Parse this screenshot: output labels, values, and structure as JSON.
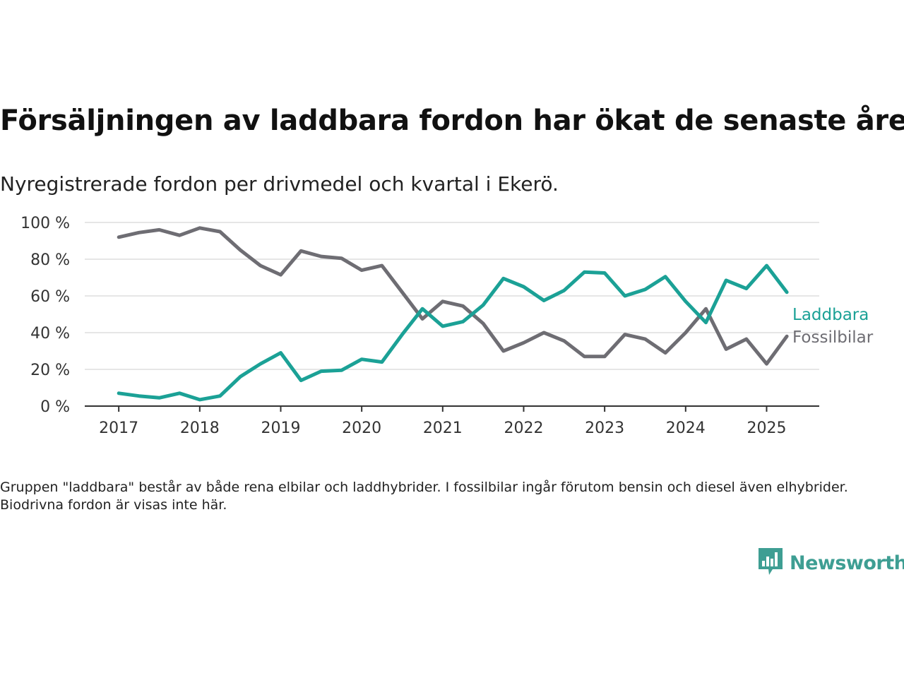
{
  "title": "Försäljningen av laddbara fordon har ökat de senaste åren",
  "subtitle": "Nyregistrerade fordon per drivmedel och kvartal i Ekerö.",
  "footnote": "Gruppen \"laddbara\" består av både rena elbilar och laddhybrider. I fossilbilar ingår förutom bensin och diesel även elhybrider. Biodrivna fordon är visas inte här.",
  "logo": {
    "text": "Newsworthy",
    "icon": "bar-chart-speech-bubble-icon",
    "color": "#3e9e93"
  },
  "chart_data": {
    "type": "line",
    "xlabel": "",
    "ylabel": "",
    "ylim": [
      0,
      100
    ],
    "xlim": [
      2016.58,
      2025.65
    ],
    "yticks": [
      0,
      20,
      40,
      60,
      80,
      100
    ],
    "yticklabels": [
      "0 %",
      "20 %",
      "40 %",
      "60 %",
      "80 %",
      "100 %"
    ],
    "xticks": [
      2017,
      2018,
      2019,
      2020,
      2021,
      2022,
      2023,
      2024,
      2025
    ],
    "xticklabels": [
      "2017",
      "2018",
      "2019",
      "2020",
      "2021",
      "2022",
      "2023",
      "2024",
      "2025"
    ],
    "grid": true,
    "legend": "inline labels at line ends, right",
    "x": [
      "2017-Q1",
      "2017-Q2",
      "2017-Q3",
      "2017-Q4",
      "2018-Q1",
      "2018-Q2",
      "2018-Q3",
      "2018-Q4",
      "2019-Q1",
      "2019-Q2",
      "2019-Q3",
      "2019-Q4",
      "2020-Q1",
      "2020-Q2",
      "2020-Q3",
      "2020-Q4",
      "2021-Q1",
      "2021-Q2",
      "2021-Q3",
      "2021-Q4",
      "2022-Q1",
      "2022-Q2",
      "2022-Q3",
      "2022-Q4",
      "2023-Q1",
      "2023-Q2",
      "2023-Q3",
      "2023-Q4",
      "2024-Q1",
      "2024-Q2",
      "2024-Q3",
      "2024-Q4",
      "2025-Q1",
      "2025-Q2"
    ],
    "series": [
      {
        "name": "Laddbara",
        "color": "#1ba196",
        "values": [
          7,
          5.5,
          4.5,
          7,
          3.5,
          5.5,
          16,
          23,
          29,
          14,
          19,
          19.5,
          25.5,
          24,
          39,
          53,
          43.5,
          46,
          55,
          69.5,
          65,
          57.5,
          63,
          73,
          72.5,
          60,
          63.5,
          70.5,
          57,
          45.5,
          68.5,
          64,
          76.5,
          62
        ]
      },
      {
        "name": "Fossilbilar",
        "color": "#6e6d73",
        "values": [
          92,
          94.5,
          96,
          93,
          97,
          95,
          85,
          76.5,
          71.5,
          84.5,
          81.5,
          80.5,
          74,
          76.5,
          62,
          47.5,
          57,
          54.5,
          45,
          30,
          34.5,
          40,
          35.5,
          27,
          27,
          39,
          36.5,
          29,
          40,
          53,
          31,
          36.5,
          23,
          38
        ]
      }
    ]
  }
}
